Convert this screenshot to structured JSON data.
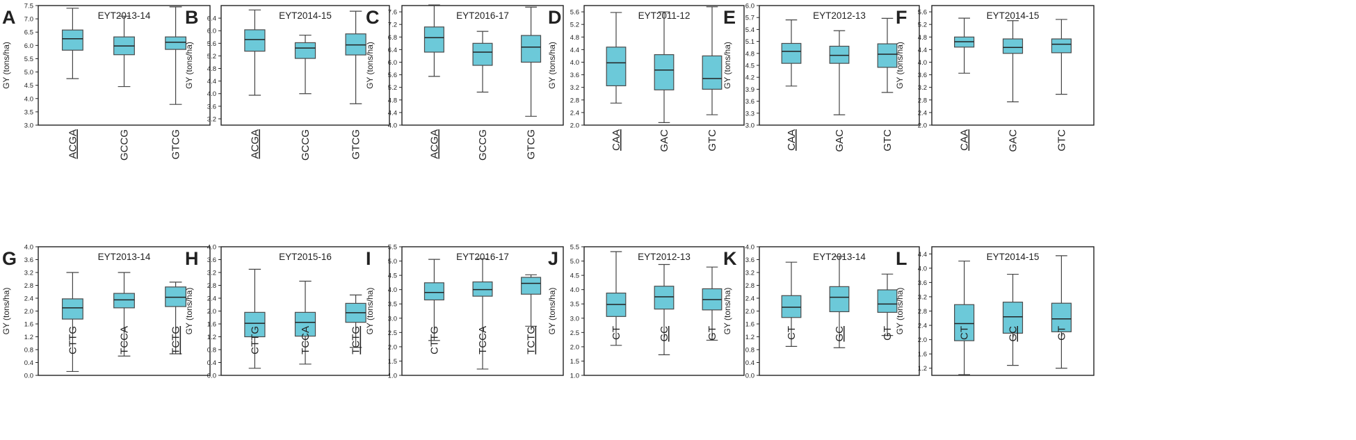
{
  "figure": {
    "colors": {
      "box_fill": "#6cc9d9",
      "box_stroke": "#4a4a4a",
      "whisker": "#444444",
      "axis": "#222222",
      "text": "#222222"
    }
  },
  "chart_data": [
    {
      "panel": "A",
      "type": "box",
      "title": "EYT2013-14",
      "ylabel": "GY (tons/ha)",
      "ylim": [
        3.0,
        7.5
      ],
      "yticks": [
        "3.0",
        "3.5",
        "4.0",
        "4.5",
        "5.0",
        "5.5",
        "6.0",
        "6.5",
        "7.0",
        "7.5"
      ],
      "categories": [
        {
          "label": "ACGA",
          "underline": true
        },
        {
          "label": "GCCG",
          "underline": false
        },
        {
          "label": "GTCG",
          "underline": false
        }
      ],
      "boxes": [
        {
          "min": 4.75,
          "q1": 5.82,
          "median": 6.25,
          "q3": 6.58,
          "max": 7.4
        },
        {
          "min": 4.45,
          "q1": 5.65,
          "median": 5.98,
          "q3": 6.32,
          "max": 7.1
        },
        {
          "min": 3.78,
          "q1": 5.85,
          "median": 6.12,
          "q3": 6.32,
          "max": 7.45
        }
      ]
    },
    {
      "panel": "B",
      "type": "box",
      "title": "EYT2014-15",
      "ylabel": "GY (tons/ha)",
      "ylim": [
        3.0,
        6.8
      ],
      "yticks": [
        "3.2",
        "3.6",
        "4.0",
        "4.4",
        "4.8",
        "5.2",
        "5.6",
        "6.0",
        "6.4"
      ],
      "categories": [
        {
          "label": "ACGA",
          "underline": true
        },
        {
          "label": "GCCG",
          "underline": false
        },
        {
          "label": "GTCG",
          "underline": false
        }
      ],
      "boxes": [
        {
          "min": 3.95,
          "q1": 5.35,
          "median": 5.72,
          "q3": 6.03,
          "max": 6.66
        },
        {
          "min": 4.0,
          "q1": 5.12,
          "median": 5.45,
          "q3": 5.62,
          "max": 5.86
        },
        {
          "min": 3.68,
          "q1": 5.23,
          "median": 5.55,
          "q3": 5.9,
          "max": 6.62
        }
      ]
    },
    {
      "panel": "C",
      "type": "box",
      "title": "EYT2016-17",
      "ylabel": "GY (tons/ha)",
      "ylim": [
        4.0,
        7.8
      ],
      "yticks": [
        "4.0",
        "4.4",
        "4.8",
        "5.2",
        "5.6",
        "6.0",
        "6.4",
        "6.8",
        "7.2",
        "7.6"
      ],
      "categories": [
        {
          "label": "ACGA",
          "underline": true
        },
        {
          "label": "GCCG",
          "underline": false
        },
        {
          "label": "GTCG",
          "underline": false
        }
      ],
      "boxes": [
        {
          "min": 5.55,
          "q1": 6.32,
          "median": 6.78,
          "q3": 7.12,
          "max": 7.82
        },
        {
          "min": 5.05,
          "q1": 5.9,
          "median": 6.32,
          "q3": 6.6,
          "max": 6.98
        },
        {
          "min": 4.28,
          "q1": 6.0,
          "median": 6.48,
          "q3": 6.85,
          "max": 7.75
        }
      ]
    },
    {
      "panel": "D",
      "type": "box",
      "title": "EYT2011-12",
      "ylabel": "GY (tons/ha)",
      "ylim": [
        2.0,
        5.8
      ],
      "yticks": [
        "2.0",
        "2.4",
        "2.8",
        "3.2",
        "3.6",
        "4.0",
        "4.4",
        "4.8",
        "5.2",
        "5.6"
      ],
      "categories": [
        {
          "label": "CAA",
          "underline": true
        },
        {
          "label": "GAC",
          "underline": false
        },
        {
          "label": "GTC",
          "underline": false
        }
      ],
      "boxes": [
        {
          "min": 2.7,
          "q1": 3.25,
          "median": 3.98,
          "q3": 4.48,
          "max": 5.58
        },
        {
          "min": 2.08,
          "q1": 3.12,
          "median": 3.75,
          "q3": 4.24,
          "max": 5.6
        },
        {
          "min": 2.33,
          "q1": 3.14,
          "median": 3.48,
          "q3": 4.2,
          "max": 5.76
        }
      ]
    },
    {
      "panel": "E",
      "type": "box",
      "title": "EYT2012-13",
      "ylabel": "GY (tons/ha)",
      "ylim": [
        3.0,
        6.0
      ],
      "yticks": [
        "3.0",
        "3.3",
        "3.6",
        "3.9",
        "4.2",
        "4.5",
        "4.8",
        "5.1",
        "5.4",
        "5.7",
        "6.0"
      ],
      "categories": [
        {
          "label": "CAA",
          "underline": true
        },
        {
          "label": "GAC",
          "underline": false
        },
        {
          "label": "GTC",
          "underline": false
        }
      ],
      "boxes": [
        {
          "min": 3.98,
          "q1": 4.55,
          "median": 4.85,
          "q3": 5.05,
          "max": 5.64
        },
        {
          "min": 3.26,
          "q1": 4.55,
          "median": 4.75,
          "q3": 4.98,
          "max": 5.37
        },
        {
          "min": 3.82,
          "q1": 4.45,
          "median": 4.78,
          "q3": 5.04,
          "max": 5.68
        }
      ]
    },
    {
      "panel": "F",
      "type": "box",
      "title": "EYT2014-15",
      "ylabel": "GY (tons/ha)",
      "ylim": [
        2.0,
        5.8
      ],
      "yticks": [
        "2.0",
        "2.4",
        "2.8",
        "3.2",
        "3.6",
        "4.0",
        "4.4",
        "4.8",
        "5.2",
        "5.6"
      ],
      "categories": [
        {
          "label": "CAA",
          "underline": true
        },
        {
          "label": "GAC",
          "underline": false
        },
        {
          "label": "GTC",
          "underline": false
        }
      ],
      "boxes": [
        {
          "min": 3.65,
          "q1": 4.48,
          "median": 4.65,
          "q3": 4.8,
          "max": 5.4
        },
        {
          "min": 2.74,
          "q1": 4.28,
          "median": 4.47,
          "q3": 4.74,
          "max": 5.32
        },
        {
          "min": 2.98,
          "q1": 4.3,
          "median": 4.57,
          "q3": 4.74,
          "max": 5.36
        }
      ]
    },
    {
      "panel": "G",
      "type": "box",
      "title": "EYT2013-14",
      "ylabel": "GY (tons/ha)",
      "ylim": [
        0.0,
        4.0
      ],
      "yticks": [
        "0.0",
        "0.4",
        "0.8",
        "1.2",
        "1.6",
        "2.0",
        "2.4",
        "2.8",
        "3.2",
        "3.6",
        "4.0"
      ],
      "categories": [
        {
          "label": "CTTG",
          "underline": false
        },
        {
          "label": "TCCA",
          "underline": false
        },
        {
          "label": "TCTG",
          "underline": true
        }
      ],
      "boxes": [
        {
          "min": 0.12,
          "q1": 1.75,
          "median": 2.1,
          "q3": 2.38,
          "max": 3.2
        },
        {
          "min": 0.6,
          "q1": 2.1,
          "median": 2.35,
          "q3": 2.55,
          "max": 3.2
        },
        {
          "min": 0.67,
          "q1": 2.14,
          "median": 2.43,
          "q3": 2.75,
          "max": 2.9
        }
      ]
    },
    {
      "panel": "H",
      "type": "box",
      "title": "EYT2015-16",
      "ylabel": "GY (tons/ha)",
      "ylim": [
        0.0,
        4.0
      ],
      "yticks": [
        "0.0",
        "0.4",
        "0.8",
        "1.2",
        "1.6",
        "2.0",
        "2.4",
        "2.8",
        "3.2",
        "3.6",
        "4.0"
      ],
      "categories": [
        {
          "label": "CTTG",
          "underline": false
        },
        {
          "label": "TCCA",
          "underline": false
        },
        {
          "label": "TCTG",
          "underline": true
        }
      ],
      "boxes": [
        {
          "min": 0.22,
          "q1": 1.2,
          "median": 1.62,
          "q3": 1.96,
          "max": 3.3
        },
        {
          "min": 0.35,
          "q1": 1.22,
          "median": 1.65,
          "q3": 1.96,
          "max": 2.93
        },
        {
          "min": 0.87,
          "q1": 1.65,
          "median": 1.95,
          "q3": 2.24,
          "max": 2.5
        }
      ]
    },
    {
      "panel": "I",
      "type": "box",
      "title": "EYT2016-17",
      "ylabel": "GY (tons/ha)",
      "ylim": [
        1.0,
        5.5
      ],
      "yticks": [
        "1.0",
        "1.5",
        "2.0",
        "2.5",
        "3.0",
        "3.5",
        "4.0",
        "4.5",
        "5.0",
        "5.5"
      ],
      "categories": [
        {
          "label": "CTTG",
          "underline": false
        },
        {
          "label": "TCCA",
          "underline": false
        },
        {
          "label": "TCTG",
          "underline": true
        }
      ],
      "boxes": [
        {
          "min": 2.22,
          "q1": 3.64,
          "median": 3.9,
          "q3": 4.24,
          "max": 5.06
        },
        {
          "min": 1.22,
          "q1": 3.77,
          "median": 4.0,
          "q3": 4.27,
          "max": 5.08
        },
        {
          "min": 2.72,
          "q1": 3.84,
          "median": 4.22,
          "q3": 4.43,
          "max": 4.52
        }
      ]
    },
    {
      "panel": "J",
      "type": "box",
      "title": "EYT2012-13",
      "ylabel": "GY (tons/ha)",
      "ylim": [
        1.0,
        5.5
      ],
      "yticks": [
        "1.0",
        "1.5",
        "2.0",
        "2.5",
        "3.0",
        "3.5",
        "4.0",
        "4.5",
        "5.0",
        "5.5"
      ],
      "categories": [
        {
          "label": "CT",
          "underline": false
        },
        {
          "label": "GC",
          "underline": true
        },
        {
          "label": "GT",
          "underline": false
        }
      ],
      "boxes": [
        {
          "min": 2.05,
          "q1": 3.06,
          "median": 3.48,
          "q3": 3.88,
          "max": 5.33
        },
        {
          "min": 1.72,
          "q1": 3.32,
          "median": 3.75,
          "q3": 4.12,
          "max": 4.88
        },
        {
          "min": 2.23,
          "q1": 3.29,
          "median": 3.65,
          "q3": 4.03,
          "max": 4.79
        }
      ]
    },
    {
      "panel": "K",
      "type": "box",
      "title": "EYT2013-14",
      "ylabel": "GY (tons/ha)",
      "ylim": [
        0.0,
        4.0
      ],
      "yticks": [
        "0.0",
        "0.4",
        "0.8",
        "1.2",
        "1.6",
        "2.0",
        "2.4",
        "2.8",
        "3.2",
        "3.6",
        "4.0"
      ],
      "categories": [
        {
          "label": "CT",
          "underline": false
        },
        {
          "label": "GC",
          "underline": true
        },
        {
          "label": "GT",
          "underline": false
        }
      ],
      "boxes": [
        {
          "min": 0.9,
          "q1": 1.8,
          "median": 2.12,
          "q3": 2.48,
          "max": 3.52
        },
        {
          "min": 0.86,
          "q1": 1.98,
          "median": 2.43,
          "q3": 2.76,
          "max": 3.7
        },
        {
          "min": 1.24,
          "q1": 1.96,
          "median": 2.22,
          "q3": 2.66,
          "max": 3.15
        }
      ]
    },
    {
      "panel": "L",
      "type": "box",
      "title": "EYT2014-15",
      "ylabel": "GY (tons/ha)",
      "ylim": [
        1.0,
        4.6
      ],
      "yticks": [
        "1.2",
        "1.6",
        "2.0",
        "2.4",
        "2.8",
        "3.2",
        "3.6",
        "4.0",
        "4.4"
      ],
      "categories": [
        {
          "label": "CT",
          "underline": false
        },
        {
          "label": "GC",
          "underline": true
        },
        {
          "label": "GT",
          "underline": false
        }
      ],
      "boxes": [
        {
          "min": 1.02,
          "q1": 1.97,
          "median": 2.45,
          "q3": 2.98,
          "max": 4.2
        },
        {
          "min": 1.28,
          "q1": 2.18,
          "median": 2.64,
          "q3": 3.05,
          "max": 3.83
        },
        {
          "min": 1.2,
          "q1": 2.22,
          "median": 2.58,
          "q3": 3.02,
          "max": 4.35
        }
      ]
    }
  ]
}
